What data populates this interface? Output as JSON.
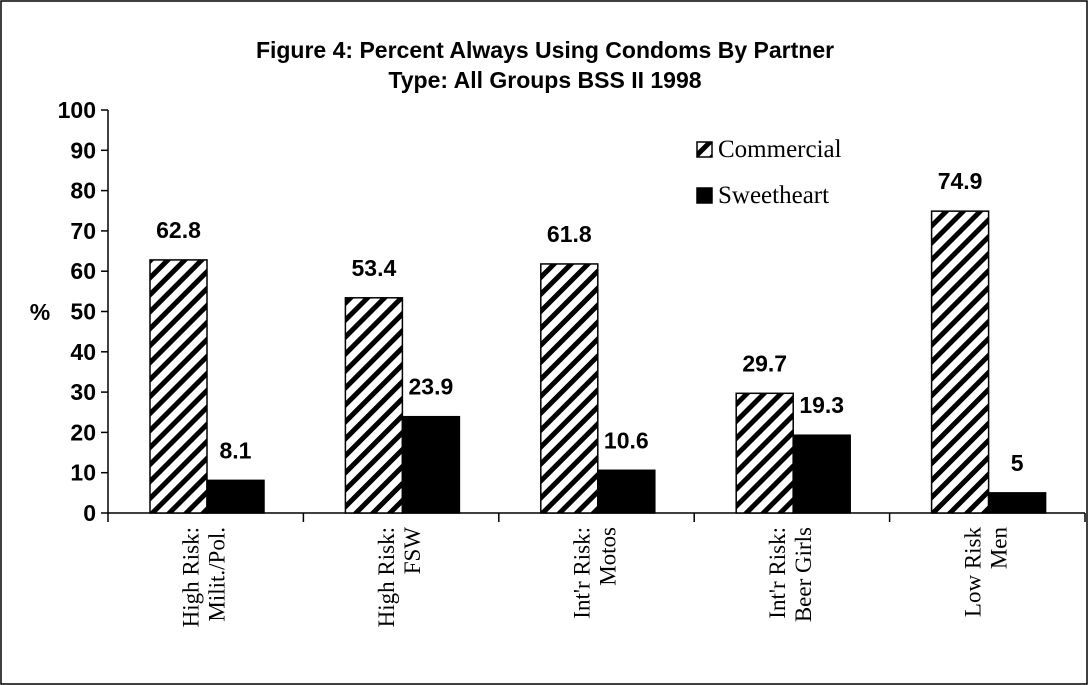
{
  "chart_data": {
    "type": "bar",
    "title": [
      "Figure 4: Percent Always Using Condoms By Partner",
      "Type: All Groups BSS II 1998"
    ],
    "y_label": "%",
    "categories": [
      [
        "High Risk:",
        "Milit./Pol."
      ],
      [
        "High Risk:",
        "FSW"
      ],
      [
        "Int'r Risk:",
        "Motos"
      ],
      [
        "Int'r Risk:",
        "Beer Girls"
      ],
      [
        "Low Risk",
        "Men"
      ]
    ],
    "series": [
      {
        "name": "Commercial",
        "color": "hatched",
        "values": [
          62.8,
          53.4,
          61.8,
          29.7,
          74.9
        ]
      },
      {
        "name": "Sweetheart",
        "color": "#000000",
        "values": [
          8.1,
          23.9,
          10.6,
          19.3,
          5
        ]
      }
    ],
    "ylim": [
      0,
      100
    ],
    "yticks": [
      0,
      10,
      20,
      30,
      40,
      50,
      60,
      70,
      80,
      90,
      100
    ],
    "grid": false,
    "legend": "upper right"
  }
}
